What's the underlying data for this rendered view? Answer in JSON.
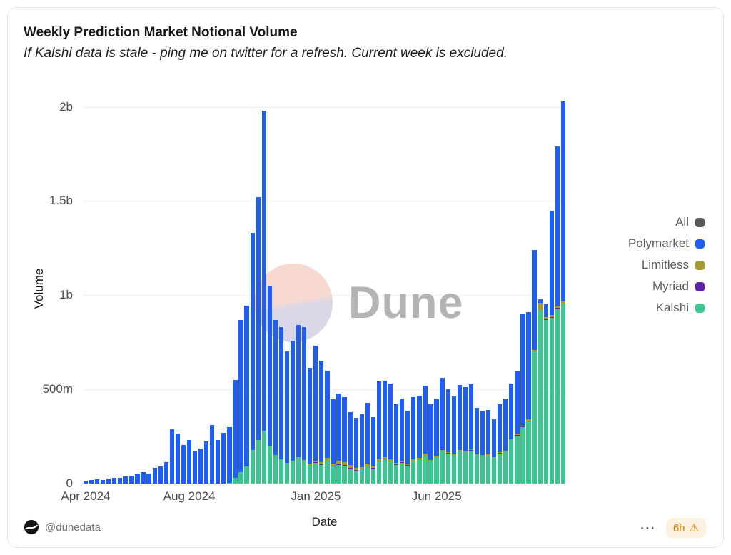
{
  "card": {
    "title": "Weekly Prediction Market Notional Volume",
    "subtitle": "If Kalshi data is stale - ping me on twitter for a refresh. Current week is excluded."
  },
  "watermark": {
    "text": "Dune"
  },
  "footer": {
    "handle": "@dunedata",
    "more_icon": "⋯",
    "badge_text": "6h",
    "badge_icon": "⚠"
  },
  "legend": [
    {
      "label": "All",
      "color": "#58585a"
    },
    {
      "label": "Polymarket",
      "color": "#1e5ef5"
    },
    {
      "label": "Limitless",
      "color": "#a49b2f"
    },
    {
      "label": "Myriad",
      "color": "#641fae"
    },
    {
      "label": "Kalshi",
      "color": "#3cc68f"
    }
  ],
  "chart_data": {
    "type": "bar",
    "stacked": true,
    "title": "Weekly Prediction Market Notional Volume",
    "xlabel": "Date",
    "ylabel": "Volume",
    "value_unit": "millions",
    "ylim": [
      0,
      2070
    ],
    "grid": true,
    "legend_position": "right",
    "y_ticks": [
      {
        "value": 0,
        "label": "0"
      },
      {
        "value": 500,
        "label": "500m"
      },
      {
        "value": 1000,
        "label": "1b"
      },
      {
        "value": 1500,
        "label": "1.5b"
      },
      {
        "value": 2000,
        "label": "2b"
      }
    ],
    "x_ticks": [
      {
        "index": 0,
        "label": "Apr 2024"
      },
      {
        "index": 18,
        "label": "Aug 2024"
      },
      {
        "index": 40,
        "label": "Jan 2025"
      },
      {
        "index": 61,
        "label": "Jun 2025"
      }
    ],
    "x": [
      "2024-04-01",
      "2024-04-08",
      "2024-04-15",
      "2024-04-22",
      "2024-04-29",
      "2024-05-06",
      "2024-05-13",
      "2024-05-20",
      "2024-05-27",
      "2024-06-03",
      "2024-06-10",
      "2024-06-17",
      "2024-06-24",
      "2024-07-01",
      "2024-07-08",
      "2024-07-15",
      "2024-07-22",
      "2024-07-29",
      "2024-08-05",
      "2024-08-12",
      "2024-08-19",
      "2024-08-26",
      "2024-09-02",
      "2024-09-09",
      "2024-09-16",
      "2024-09-23",
      "2024-09-30",
      "2024-10-07",
      "2024-10-14",
      "2024-10-21",
      "2024-10-28",
      "2024-11-04",
      "2024-11-11",
      "2024-11-18",
      "2024-11-25",
      "2024-12-02",
      "2024-12-09",
      "2024-12-16",
      "2024-12-23",
      "2024-12-30",
      "2025-01-06",
      "2025-01-13",
      "2025-01-20",
      "2025-01-27",
      "2025-02-03",
      "2025-02-10",
      "2025-02-17",
      "2025-02-24",
      "2025-03-03",
      "2025-03-10",
      "2025-03-17",
      "2025-03-24",
      "2025-03-31",
      "2025-04-07",
      "2025-04-14",
      "2025-04-21",
      "2025-04-28",
      "2025-05-05",
      "2025-05-12",
      "2025-05-19",
      "2025-05-26",
      "2025-06-02",
      "2025-06-09",
      "2025-06-16",
      "2025-06-23",
      "2025-06-30",
      "2025-07-07",
      "2025-07-14",
      "2025-07-21",
      "2025-07-28",
      "2025-08-04",
      "2025-08-11",
      "2025-08-18",
      "2025-08-25",
      "2025-09-01",
      "2025-09-08",
      "2025-09-15",
      "2025-09-22",
      "2025-09-29",
      "2025-10-06",
      "2025-10-13",
      "2025-10-20",
      "2025-10-27",
      "2025-11-03"
    ],
    "series": [
      {
        "name": "Kalshi",
        "color": "#3cc68f",
        "values": [
          0,
          0,
          0,
          0,
          0,
          0,
          0,
          0,
          0,
          0,
          0,
          0,
          0,
          0,
          0,
          0,
          0,
          0,
          0,
          0,
          0,
          0,
          0,
          0,
          0,
          5,
          30,
          60,
          90,
          180,
          230,
          280,
          200,
          150,
          130,
          110,
          120,
          140,
          120,
          100,
          110,
          100,
          120,
          90,
          100,
          95,
          80,
          70,
          75,
          90,
          80,
          120,
          130,
          120,
          100,
          110,
          95,
          120,
          130,
          150,
          120,
          140,
          180,
          160,
          150,
          170,
          165,
          175,
          150,
          145,
          150,
          135,
          160,
          170,
          230,
          255,
          300,
          330,
          700,
          920,
          870,
          880,
          930,
          950
        ]
      },
      {
        "name": "Myriad",
        "color": "#641fae",
        "values": [
          0,
          0,
          0,
          0,
          0,
          0,
          0,
          0,
          0,
          0,
          0,
          0,
          0,
          0,
          0,
          0,
          0,
          0,
          0,
          0,
          0,
          0,
          0,
          0,
          0,
          0,
          0,
          0,
          0,
          0,
          0,
          0,
          0,
          0,
          0,
          0,
          0,
          0,
          0,
          0,
          2,
          2,
          3,
          3,
          3,
          3,
          3,
          3,
          3,
          3,
          2,
          2,
          2,
          2,
          2,
          2,
          2,
          2,
          2,
          2,
          2,
          2,
          2,
          2,
          2,
          2,
          2,
          2,
          2,
          2,
          2,
          2,
          2,
          2,
          2,
          2,
          2,
          2,
          2,
          3,
          2,
          3,
          3,
          3
        ]
      },
      {
        "name": "Limitless",
        "color": "#a49b2f",
        "values": [
          0,
          0,
          0,
          0,
          0,
          0,
          0,
          0,
          0,
          0,
          0,
          0,
          0,
          0,
          0,
          0,
          0,
          0,
          0,
          0,
          0,
          0,
          0,
          0,
          0,
          0,
          0,
          0,
          0,
          0,
          0,
          0,
          0,
          0,
          0,
          0,
          0,
          0,
          5,
          5,
          10,
          10,
          15,
          15,
          20,
          15,
          15,
          10,
          10,
          10,
          10,
          10,
          10,
          8,
          8,
          8,
          6,
          6,
          6,
          6,
          5,
          5,
          5,
          5,
          5,
          5,
          5,
          5,
          4,
          4,
          4,
          4,
          4,
          4,
          5,
          5,
          5,
          8,
          8,
          35,
          10,
          10,
          10,
          12
        ]
      },
      {
        "name": "Polymarket",
        "color": "#1e5ef5",
        "values": [
          15,
          18,
          22,
          20,
          28,
          32,
          30,
          38,
          42,
          50,
          60,
          55,
          85,
          90,
          115,
          290,
          265,
          205,
          230,
          170,
          185,
          225,
          310,
          230,
          270,
          295,
          520,
          810,
          855,
          1150,
          1290,
          1700,
          850,
          720,
          700,
          590,
          640,
          700,
          705,
          510,
          610,
          540,
          460,
          340,
          355,
          345,
          280,
          265,
          280,
          325,
          260,
          410,
          405,
          400,
          310,
          330,
          285,
          330,
          330,
          360,
          295,
          305,
          375,
          335,
          305,
          345,
          340,
          345,
          245,
          235,
          235,
          200,
          255,
          275,
          295,
          335,
          590,
          570,
          530,
          20,
          70,
          555,
          845,
          1065
        ]
      }
    ]
  }
}
